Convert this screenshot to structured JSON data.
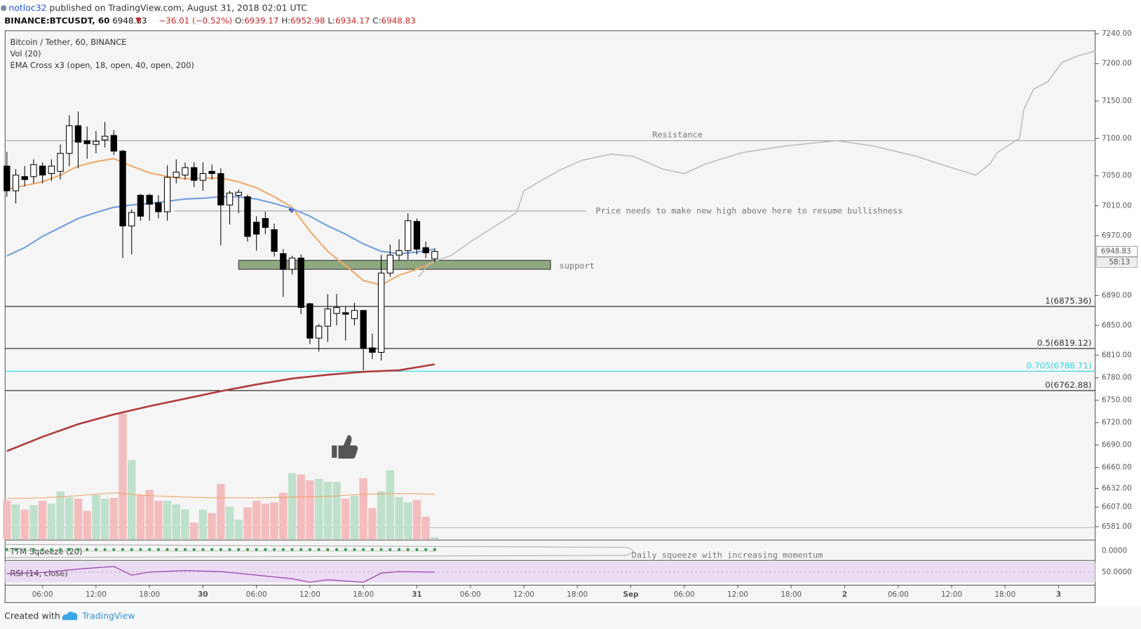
{
  "header": {
    "author": "notloc32",
    "published": "published on TradingView.com, August 31, 2018 02:01 UTC",
    "symbol": "BINANCE:BTCUSDT, 60",
    "last": 6948.83,
    "change": "−36.01 (−0.52%)",
    "ohlc": [
      {
        "key": "O:",
        "value": 6939.17
      },
      {
        "key": "H:",
        "value": 6952.98
      },
      {
        "key": "L:",
        "value": 6934.17
      },
      {
        "key": "C:",
        "value": 6948.83
      }
    ],
    "countdown": "58:13"
  },
  "chart_data": {
    "type": "candlestick",
    "title": "Bitcoin / Tether, 60, BINANCE",
    "indicators": [
      "Vol (20)",
      "EMA Cross x3 (open, 18, open, 40, open, 200)"
    ],
    "xlim": [
      -4.2,
      118.1
    ],
    "xticks": [
      {
        "value": 0,
        "label": "06:00"
      },
      {
        "value": 6,
        "label": "12:00"
      },
      {
        "value": 12,
        "label": "18:00"
      },
      {
        "value": 18,
        "label": "30"
      },
      {
        "value": 24,
        "label": "06:00"
      },
      {
        "value": 30,
        "label": "12:00"
      },
      {
        "value": 36,
        "label": "18:00"
      },
      {
        "value": 42,
        "label": "31"
      },
      {
        "value": 48,
        "label": "06:00"
      },
      {
        "value": 54,
        "label": "12:00"
      },
      {
        "value": 60,
        "label": "18:00"
      },
      {
        "value": 66,
        "label": "Sep"
      },
      {
        "value": 72,
        "label": "06:00"
      },
      {
        "value": 78,
        "label": "12:00"
      },
      {
        "value": 84,
        "label": "18:00"
      },
      {
        "value": 90,
        "label": "2"
      },
      {
        "value": 96,
        "label": "06:00"
      },
      {
        "value": 102,
        "label": "12:00"
      },
      {
        "value": 108,
        "label": "18:00"
      },
      {
        "value": 114,
        "label": "3"
      }
    ],
    "ylim": [
      6563,
      7244
    ],
    "yticks": [
      {
        "value": 7240,
        "label": "7240.00"
      },
      {
        "value": 7200,
        "label": "7200.00"
      },
      {
        "value": 7150,
        "label": "7150.00"
      },
      {
        "value": 7100,
        "label": "7100.00"
      },
      {
        "value": 7050,
        "label": "7050.00"
      },
      {
        "value": 7010,
        "label": "7010.00"
      },
      {
        "value": 6970,
        "label": "6970.00"
      },
      {
        "value": 6890,
        "label": "6890.00"
      },
      {
        "value": 6850,
        "label": "6850.00"
      },
      {
        "value": 6810,
        "label": "6810.00"
      },
      {
        "value": 6780,
        "label": "6780.00"
      },
      {
        "value": 6750,
        "label": "6750.00"
      },
      {
        "value": 6720,
        "label": "6720.00"
      },
      {
        "value": 6690,
        "label": "6690.00"
      },
      {
        "value": 6660,
        "label": "6660.00"
      },
      {
        "value": 6632,
        "label": "6632.00"
      },
      {
        "value": 6607,
        "label": "6607.00"
      },
      {
        "value": 6581,
        "label": "6581.00"
      }
    ],
    "x": [
      -4,
      -3,
      -2,
      -1,
      0,
      1,
      2,
      3,
      4,
      5,
      6,
      7,
      8,
      9,
      10,
      11,
      12,
      13,
      14,
      15,
      16,
      17,
      18,
      19,
      20,
      21,
      22,
      23,
      24,
      25,
      26,
      27,
      28,
      29,
      30,
      31,
      32,
      33,
      34,
      35,
      36,
      37,
      38,
      39,
      40,
      41,
      42,
      43,
      44
    ],
    "open": [
      7063,
      7030,
      7049,
      7049,
      7063,
      7053,
      7056,
      7080,
      7117,
      7097,
      7092,
      7098,
      7104,
      7083,
      6983,
      7024,
      7024,
      7014,
      7002,
      7048,
      7051,
      7061,
      7044,
      7056,
      7053,
      7011,
      7024,
      7022,
      6988,
      6993,
      6978,
      6946,
      6925,
      6940,
      6879,
      6833,
      6849,
      6866,
      6867,
      6859,
      6870,
      6820,
      6814,
      6920,
      6944,
      6950,
      6989,
      6954,
      6939
    ],
    "high": [
      7082,
      7059,
      7063,
      7072,
      7068,
      7072,
      7092,
      7131,
      7136,
      7116,
      7110,
      7122,
      7111,
      7085,
      7005,
      7026,
      7026,
      7024,
      7064,
      7072,
      7068,
      7068,
      7068,
      7065,
      7060,
      7030,
      7032,
      7025,
      6996,
      7002,
      6986,
      6952,
      6943,
      6945,
      6880,
      6852,
      6892,
      6892,
      6875,
      6880,
      6870,
      6839,
      6944,
      6958,
      6965,
      7000,
      6993,
      6962,
      6952.98
    ],
    "low": [
      7022,
      7013,
      7036,
      7040,
      7040,
      7043,
      7045,
      7063,
      7060,
      7073,
      7080,
      7088,
      7078,
      6940,
      6945,
      6990,
      6990,
      6993,
      6990,
      7040,
      7045,
      7035,
      7030,
      7045,
      6957,
      6985,
      7000,
      6962,
      6950,
      6972,
      6942,
      6888,
      6918,
      6865,
      6825,
      6815,
      6828,
      6850,
      6830,
      6850,
      6790,
      6805,
      6803,
      6915,
      6937,
      6938,
      6945,
      6940,
      6934.17
    ],
    "close": [
      7030,
      7051,
      7045,
      7065,
      7051,
      7063,
      7080,
      7117,
      7095,
      7093,
      7096,
      7103,
      7083,
      6983,
      7001,
      6996,
      7012,
      7002,
      7048,
      7055,
      7061,
      7044,
      7053,
      7053,
      7011,
      7027,
      7028,
      6969,
      6972,
      6981,
      6949,
      6925,
      6940,
      6874,
      6833,
      6849,
      6872,
      6874,
      6865,
      6870,
      6820,
      6814,
      6920,
      6944,
      6950,
      6990,
      6952,
      6947,
      6948.83
    ],
    "bull_color": "#ffffff",
    "bear_color": "#000000",
    "volume": [
      53,
      48,
      41,
      47,
      53,
      49,
      66,
      58,
      56,
      39,
      61,
      56,
      57,
      173,
      109,
      61,
      68,
      53,
      53,
      48,
      41,
      23,
      41,
      36,
      76,
      45,
      27,
      44,
      53,
      49,
      51,
      64,
      91,
      89,
      81,
      83,
      79,
      79,
      56,
      60,
      84,
      43,
      66,
      95,
      58,
      51,
      54,
      31,
      3
    ],
    "volume_ylim": [
      0,
      700
    ],
    "volume_up_color": "#bfe0cb",
    "volume_down_color": "#f5bcbe",
    "volume_ma": {
      "x": [
        -4,
        0,
        4,
        8,
        12,
        16,
        20,
        24,
        28,
        32,
        36,
        40,
        44
      ],
      "values": [
        56,
        57,
        60,
        64,
        60,
        58,
        57,
        57,
        58,
        59,
        62,
        63,
        62
      ],
      "color": "#f0a060"
    },
    "emas": [
      {
        "color": "#f0a868",
        "x": [
          -4,
          -2,
          0,
          2,
          4,
          6,
          8,
          10,
          12,
          14,
          16,
          18,
          20,
          22,
          24,
          26,
          28,
          30,
          32,
          34,
          36,
          38,
          40,
          42,
          44
        ],
        "values": [
          7032,
          7037,
          7042,
          7051,
          7063,
          7069,
          7073,
          7063,
          7054,
          7049,
          7046,
          7047,
          7047,
          7042,
          7034,
          7022,
          7008,
          6976,
          6949,
          6930,
          6910,
          6904,
          6917,
          6925,
          6935
        ]
      },
      {
        "color": "#6f9ee0",
        "x": [
          -4,
          -2,
          0,
          2,
          4,
          6,
          8,
          10,
          12,
          14,
          16,
          18,
          20,
          22,
          24,
          26,
          28,
          30,
          32,
          34,
          36,
          38,
          40,
          42,
          44
        ],
        "values": [
          6943,
          6954,
          6969,
          6981,
          6993,
          7001,
          7008,
          7011,
          7013,
          7016,
          7019,
          7020,
          7022,
          7022,
          7019,
          7013,
          7006,
          6996,
          6983,
          6972,
          6959,
          6949,
          6946,
          6948,
          6952
        ]
      },
      {
        "color": "#b03a3a",
        "x": [
          -4,
          0,
          4,
          8,
          12,
          16,
          20,
          24,
          28,
          32,
          36,
          40,
          44
        ],
        "values": [
          6682,
          6701,
          6718,
          6731,
          6742,
          6752,
          6762,
          6771,
          6779,
          6784,
          6788,
          6790,
          6798
        ]
      }
    ],
    "forecast": {
      "color": "#bbbbbb",
      "x": [
        42.2,
        43.4,
        45.9,
        48.3,
        50.8,
        53.2,
        54,
        55.7,
        58.1,
        60.6,
        63.8,
        66.3,
        69.6,
        72,
        74.4,
        78.5,
        83.4,
        89.1,
        93.2,
        98.1,
        101.4,
        104.7,
        106.3,
        107.1,
        109.6,
        110.1,
        111.2,
        112.8,
        114.4,
        116.1,
        118.1
      ],
      "values": [
        6915,
        6933,
        6944,
        6964,
        6983,
        7001,
        7030,
        7042,
        7058,
        7071,
        7079,
        7076,
        7059,
        7053,
        7066,
        7081,
        7090,
        7097,
        7090,
        7076,
        7063,
        7051,
        7066,
        7081,
        7100,
        7139,
        7166,
        7176,
        7202,
        7210,
        7217
      ]
    },
    "resistance": {
      "text": "Resistance",
      "value": 7097
    },
    "high_line": {
      "text": "Price needs to make new high above here to resume bullishness",
      "value": 7003,
      "x": [
        14.8,
        61
      ]
    },
    "support": {
      "text": "support",
      "values": [
        6925,
        6937
      ],
      "x": [
        22,
        57
      ]
    },
    "fib_levels": [
      {
        "label": "1(6875.36)",
        "value": 6875.36,
        "color": "#000000"
      },
      {
        "label": "0.5(6819.12)",
        "value": 6819.12,
        "color": "#000000"
      },
      {
        "label": "0.705(6788.71)",
        "value": 6788.71,
        "color": "#29d8ec"
      },
      {
        "label": "0(6762.88)",
        "value": 6762.88,
        "color": "#000000"
      }
    ],
    "ttm": {
      "title": "TTM Squeeze (20)",
      "yticks": [
        {
          "value": 0,
          "label": "0.0000"
        }
      ],
      "note": "Daily squeeze with increasing momentum"
    },
    "rsi": {
      "title": "RSI (14, close)",
      "ylim": [
        30,
        70
      ],
      "yticks": [
        {
          "value": 50,
          "label": "50.0000"
        }
      ],
      "x": [
        -4,
        0,
        4,
        8,
        10,
        12,
        16,
        20,
        24,
        28,
        30,
        32,
        36,
        38,
        40,
        44
      ],
      "values": [
        47,
        49,
        56,
        61,
        44,
        50,
        53,
        51,
        44,
        37,
        30,
        35,
        30,
        48,
        51,
        50
      ],
      "color": "#9c3fb0"
    }
  },
  "footer": {
    "created": "Created with",
    "brand": "TradingView"
  }
}
